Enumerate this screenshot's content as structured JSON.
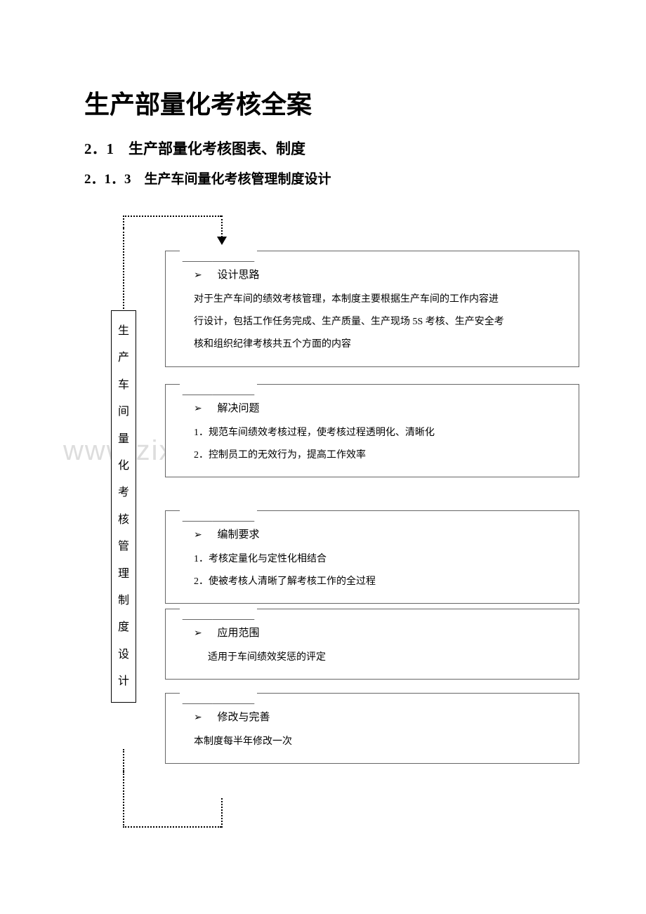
{
  "title": "生产部量化考核全案",
  "section": "2．1　生产部量化考核图表、制度",
  "subsection": "2．1．3　生产车间量化考核管理制度设计",
  "vertical_label": [
    "生",
    "产",
    "车",
    "间",
    "量",
    "化",
    "考",
    "核",
    "管",
    "理",
    "制",
    "度",
    "设",
    "计"
  ],
  "watermark": "www.zixin.com.cn",
  "boxes": {
    "b1": {
      "heading": "设计思路",
      "lines": [
        "对于生产车间的绩效考核管理，本制度主要根据生产车间的工作内容进",
        "行设计，包括工作任务完成、生产质量、生产现场 5S 考核、生产安全考",
        "核和组织纪律考核共五个方面的内容"
      ]
    },
    "b2": {
      "heading": "解决问题",
      "lines": [
        "1．规范车间绩效考核过程，使考核过程透明化、清晰化",
        "2．控制员工的无效行为，提高工作效率"
      ]
    },
    "b3": {
      "heading": "编制要求",
      "lines": [
        "1．考核定量化与定性化相结合",
        "2．使被考核人清晰了解考核工作的全过程"
      ]
    },
    "b4": {
      "heading": "应用范围",
      "lines": [
        "适用于车间绩效奖惩的评定"
      ]
    },
    "b5": {
      "heading": "修改与完善",
      "lines": [
        "本制度每半年修改一次"
      ]
    }
  },
  "marker": "➢",
  "colors": {
    "text": "#000000",
    "border": "#666666",
    "watermark": "#dddddd",
    "background": "#ffffff"
  },
  "typography": {
    "title_fontsize": 36,
    "section_fontsize": 21,
    "subsection_fontsize": 19,
    "heading_fontsize": 15,
    "body_fontsize": 14
  }
}
